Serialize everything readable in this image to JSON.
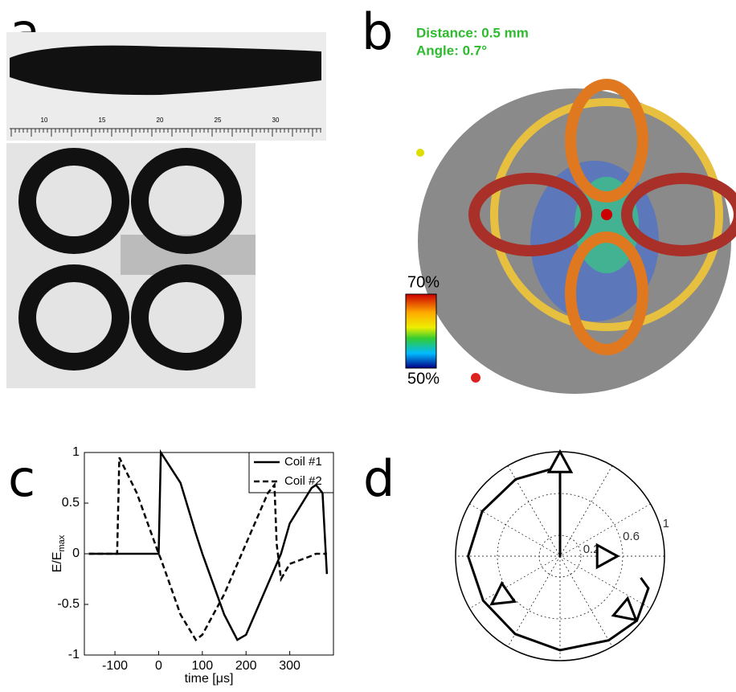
{
  "panels": {
    "a": {
      "letter": "a",
      "ruler_labels": [
        "10",
        "15",
        "20",
        "25",
        "30"
      ]
    },
    "b": {
      "letter": "b",
      "distance": "Distance: 0.5 mm",
      "angle": "Angle: 0.7°",
      "colorbar_top": "70%",
      "colorbar_bottom": "50%"
    },
    "c": {
      "letter": "c"
    },
    "d": {
      "letter": "d"
    }
  },
  "chart_data": [
    {
      "type": "line",
      "xlabel": "time [μs]",
      "ylabel": "E/E",
      "ylabel_sub": "max",
      "x": [
        -160,
        -100,
        -95,
        -90,
        -50,
        0,
        5,
        50,
        85,
        100,
        150,
        180,
        200,
        250,
        265,
        270,
        280,
        300,
        350,
        360,
        375,
        385
      ],
      "series": [
        {
          "name": "Coil #1",
          "color": "#000000",
          "dash": false,
          "values": [
            0,
            0,
            0,
            0,
            0,
            0,
            1,
            0.7,
            0.2,
            0,
            -0.6,
            -0.85,
            -0.8,
            -0.3,
            -0.15,
            -0.1,
            0,
            0.3,
            0.65,
            0.68,
            0.6,
            -0.2
          ]
        },
        {
          "name": "Coil #2",
          "color": "#000000",
          "dash": true,
          "values": [
            0,
            0,
            0,
            0.95,
            0.6,
            0,
            -0.05,
            -0.6,
            -0.85,
            -0.8,
            -0.4,
            -0.1,
            0.1,
            0.6,
            0.68,
            0.1,
            -0.25,
            -0.1,
            -0.02,
            0,
            0,
            0
          ]
        }
      ],
      "xlim": [
        -170,
        400
      ],
      "ylim": [
        -1,
        1
      ],
      "xticks": [
        -100,
        0,
        100,
        200,
        300
      ],
      "yticks": [
        -1,
        -0.5,
        0,
        0.5,
        1
      ],
      "legend": "upper right"
    },
    {
      "type": "polar",
      "rlim": [
        0,
        1
      ],
      "rticks": [
        0.2,
        0.6,
        1
      ],
      "series": [
        {
          "color": "#000000",
          "theta": [
            90,
            90,
            92,
            120,
            150,
            180,
            210,
            240,
            270,
            300,
            320,
            340,
            345
          ],
          "r": [
            0,
            1,
            0.85,
            0.85,
            0.86,
            0.88,
            0.85,
            0.86,
            0.9,
            0.93,
            0.96,
            0.9,
            0.8
          ]
        }
      ],
      "markers": {
        "theta": [
          90,
          0,
          215,
          320
        ],
        "r": [
          1,
          0.55,
          0.8,
          0.95
        ]
      }
    }
  ]
}
